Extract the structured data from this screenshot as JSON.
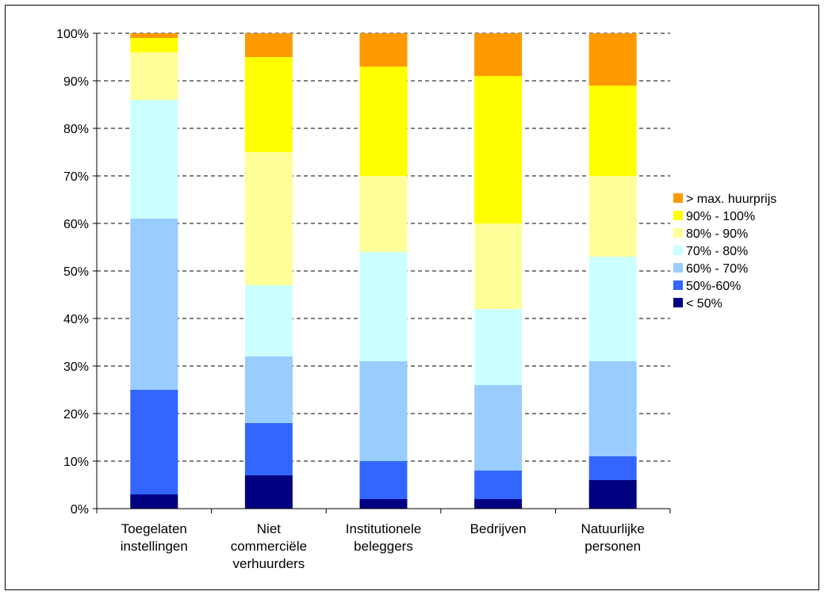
{
  "chart_data": {
    "type": "bar",
    "stacked": true,
    "normalized": true,
    "categories": [
      [
        "Toegelaten",
        "instellingen"
      ],
      [
        "Niet",
        "commerciële",
        "verhuurders"
      ],
      [
        "Institutionele",
        "beleggers"
      ],
      [
        "Bedrijven"
      ],
      [
        "Natuurlijke",
        "personen"
      ]
    ],
    "series": [
      {
        "name": "< 50%",
        "color": "#000080",
        "values": [
          3,
          7,
          2,
          2,
          6
        ]
      },
      {
        "name": "50%-60%",
        "color": "#3366ff",
        "values": [
          22,
          11,
          8,
          6,
          5
        ]
      },
      {
        "name": "60% - 70%",
        "color": "#99ccff",
        "values": [
          36,
          14,
          21,
          18,
          20
        ]
      },
      {
        "name": "70% - 80%",
        "color": "#ccffff",
        "values": [
          25,
          15,
          23,
          16,
          22
        ]
      },
      {
        "name": "80% - 90%",
        "color": "#ffff99",
        "values": [
          10,
          28,
          16,
          18,
          17
        ]
      },
      {
        "name": "90% - 100%",
        "color": "#ffff00",
        "values": [
          3,
          20,
          23,
          31,
          19
        ]
      },
      {
        "name": "> max. huurprijs",
        "color": "#ff9900",
        "values": [
          1,
          5,
          7,
          9,
          11
        ]
      }
    ],
    "ylim": [
      0,
      100
    ],
    "yticks": [
      "0%",
      "10%",
      "20%",
      "30%",
      "40%",
      "50%",
      "60%",
      "70%",
      "80%",
      "90%",
      "100%"
    ],
    "grid": true,
    "legend": "right"
  }
}
